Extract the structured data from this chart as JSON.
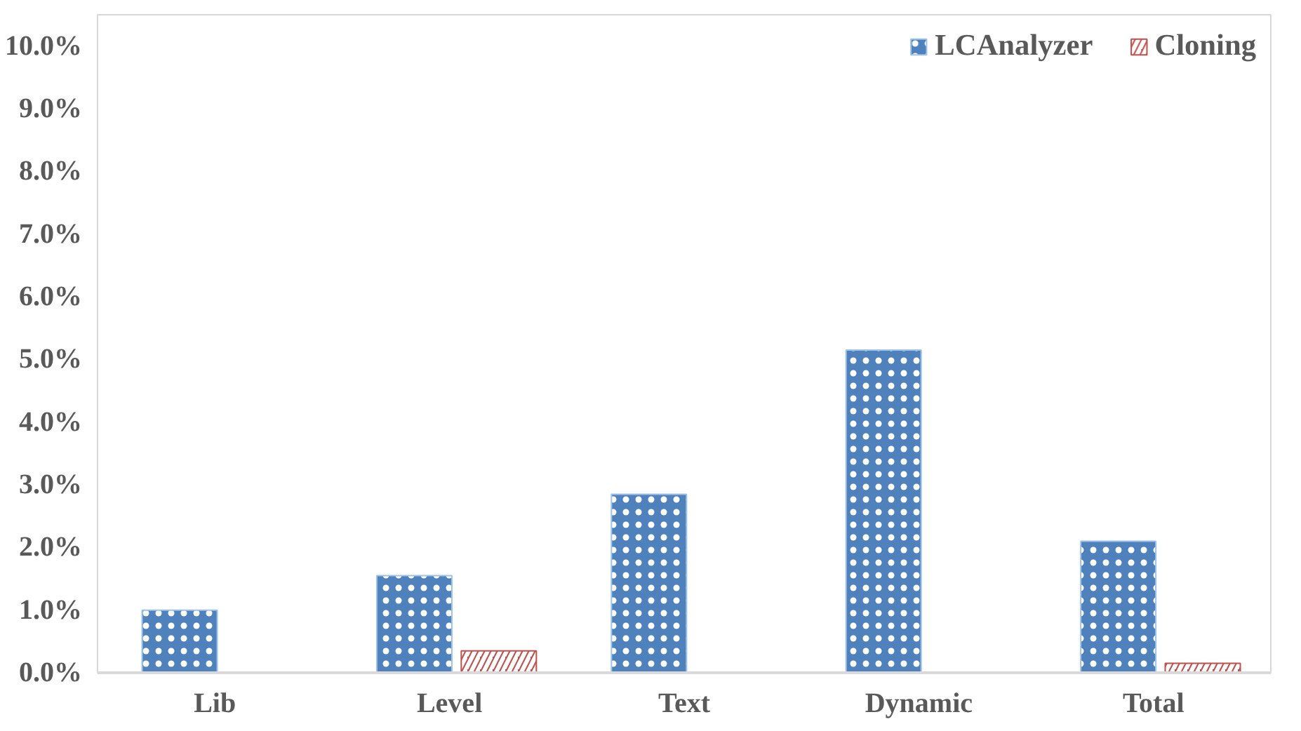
{
  "chart_data": {
    "type": "bar",
    "categories": [
      "Lib",
      "Level",
      "Text",
      "Dynamic",
      "Total"
    ],
    "series": [
      {
        "name": "LCAnalyzer",
        "color": "#4f81bd",
        "values": [
          1.0,
          1.55,
          2.85,
          5.15,
          2.1
        ]
      },
      {
        "name": "Cloning",
        "color": "#c0504d",
        "values": [
          null,
          0.35,
          null,
          null,
          0.15
        ]
      }
    ],
    "ylim": [
      0,
      10.5
    ],
    "yticks": [
      {
        "value": 0,
        "label": "0.0%"
      },
      {
        "value": 1,
        "label": "1.0%"
      },
      {
        "value": 2,
        "label": "2.0%"
      },
      {
        "value": 3,
        "label": "3.0%"
      },
      {
        "value": 4,
        "label": "4.0%"
      },
      {
        "value": 5,
        "label": "5.0%"
      },
      {
        "value": 6,
        "label": "6.0%"
      },
      {
        "value": 7,
        "label": "7.0%"
      },
      {
        "value": 8,
        "label": "8.0%"
      },
      {
        "value": 9,
        "label": "9.0%"
      },
      {
        "value": 10,
        "label": "10.0%"
      }
    ],
    "legend": "top right",
    "grid": false
  }
}
